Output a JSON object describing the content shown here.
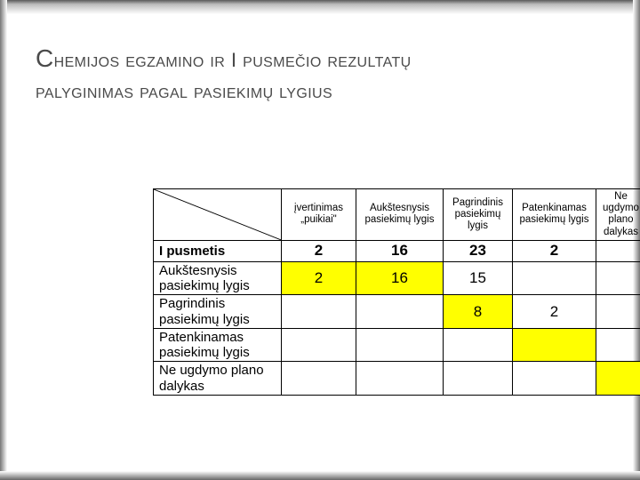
{
  "title": {
    "line1_cap1": "C",
    "line1_part1": "hemijos egzamino ir",
    "line1_mid": " I ",
    "line1_part2": "pusmečio rezultatų",
    "line2": "palyginimas pagal pasiekimų lygius"
  },
  "table": {
    "columns": [
      "įvertinimas „puikiai\"",
      "Aukštesnysis pasiekimų lygis",
      "Pagrindinis pasiekimų lygis",
      "Patenkinamas pasiekimų lygis",
      "Ne ugdymo plano dalykas"
    ],
    "highlight_color": "#ffff00",
    "rows": [
      {
        "label": "I pusmetis",
        "bold": true,
        "cells": [
          "2",
          "16",
          "23",
          "2",
          ""
        ],
        "hl": [
          false,
          false,
          false,
          false,
          false
        ]
      },
      {
        "label": "Aukštesnysis pasiekimų lygis",
        "bold": false,
        "cells": [
          "2",
          "16",
          "15",
          "",
          ""
        ],
        "hl": [
          true,
          true,
          false,
          false,
          false
        ]
      },
      {
        "label": "Pagrindinis pasiekimų lygis",
        "bold": false,
        "cells": [
          "",
          "",
          "8",
          "2",
          ""
        ],
        "hl": [
          false,
          false,
          true,
          false,
          false
        ]
      },
      {
        "label": "Patenkinamas pasiekimų lygis",
        "bold": false,
        "cells": [
          "",
          "",
          "",
          "",
          ""
        ],
        "hl": [
          false,
          false,
          false,
          true,
          false
        ]
      },
      {
        "label": "Ne ugdymo plano dalykas",
        "bold": false,
        "cells": [
          "",
          "",
          "",
          "",
          ""
        ],
        "hl": [
          false,
          false,
          false,
          false,
          true
        ]
      }
    ]
  }
}
